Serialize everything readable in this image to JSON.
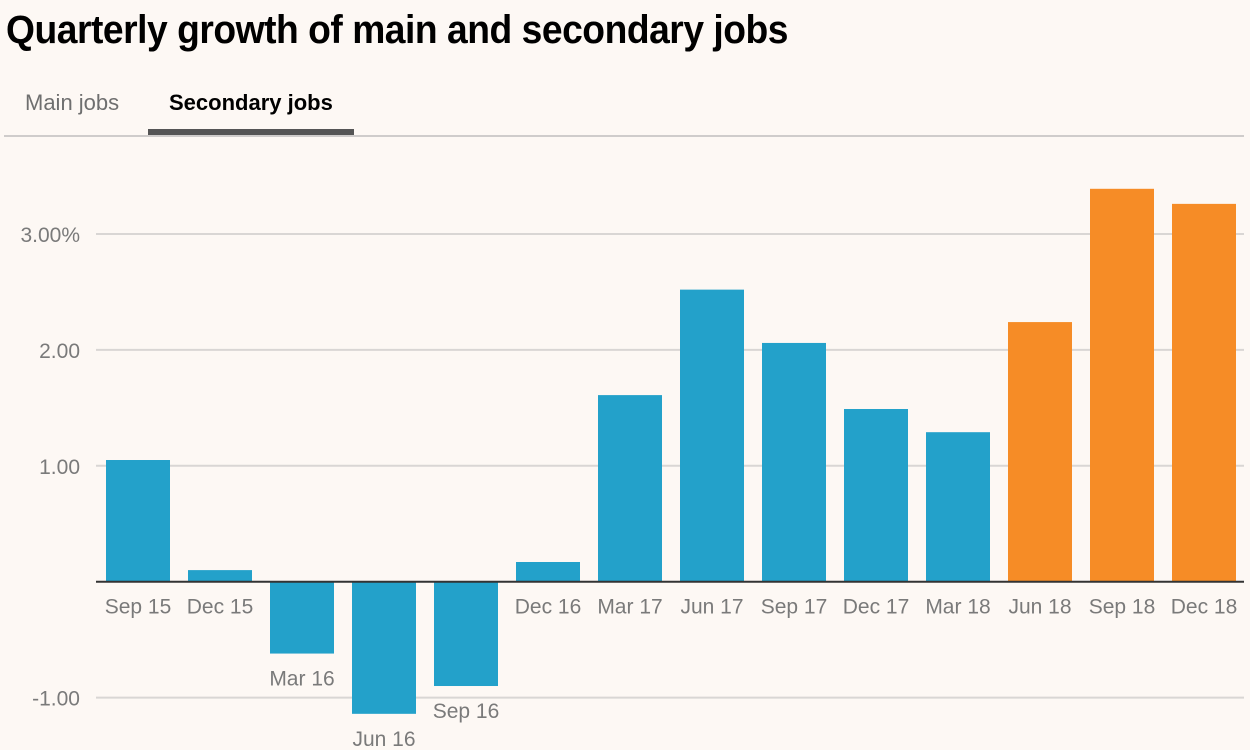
{
  "title": "Quarterly growth of main and secondary jobs",
  "tabs": [
    {
      "label": "Main jobs",
      "active": false
    },
    {
      "label": "Secondary jobs",
      "active": true
    }
  ],
  "colors": {
    "background": "#fdf8f4",
    "historic": "#23a1ca",
    "highlight": "#f68c26",
    "gridline": "#d9d6d4",
    "baseline": "#333333",
    "tab_active_underline": "#555555"
  },
  "chart_data": {
    "type": "bar",
    "title": "Quarterly growth of main and secondary jobs",
    "xlabel": "",
    "ylabel": "",
    "ylim": [
      -1.15,
      3.4
    ],
    "grid": true,
    "yticks": [
      {
        "value": 3,
        "label": "3.00%"
      },
      {
        "value": 2,
        "label": "2.00"
      },
      {
        "value": 1,
        "label": "1.00"
      },
      {
        "value": -1,
        "label": "-1.00"
      }
    ],
    "categories": [
      "Sep 15",
      "Dec 15",
      "Mar 16",
      "Jun 16",
      "Sep 16",
      "Dec 16",
      "Mar 17",
      "Jun 17",
      "Sep 17",
      "Dec 17",
      "Mar 18",
      "Jun 18",
      "Sep 18",
      "Dec 18"
    ],
    "values": [
      1.05,
      0.1,
      -0.62,
      -1.14,
      -0.9,
      0.17,
      1.61,
      2.52,
      2.06,
      1.49,
      1.29,
      2.24,
      3.39,
      3.26
    ],
    "highlight": [
      false,
      false,
      false,
      false,
      false,
      false,
      false,
      false,
      false,
      false,
      false,
      true,
      true,
      true
    ]
  }
}
